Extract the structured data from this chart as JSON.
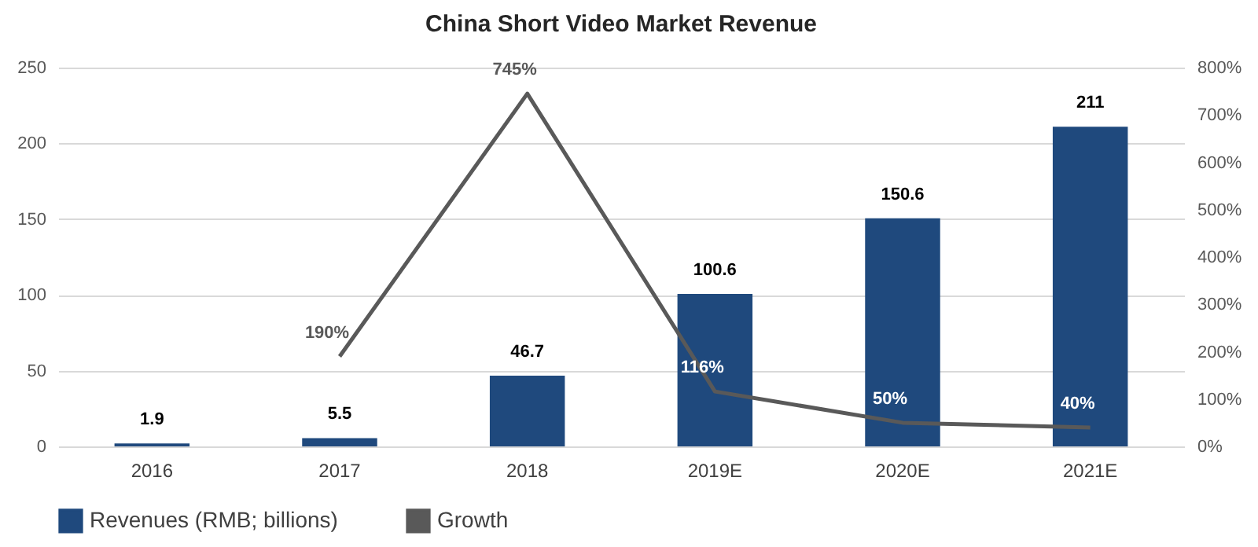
{
  "chart_data": {
    "type": "bar",
    "title": "China Short Video Market Revenue",
    "categories": [
      "2016",
      "2017",
      "2018",
      "2019E",
      "2020E",
      "2021E"
    ],
    "series": [
      {
        "name": "Revenues (RMB; billions)",
        "color": "#1f497d",
        "values": [
          1.9,
          5.5,
          46.7,
          100.6,
          150.6,
          211
        ],
        "value_labels": [
          "1.9",
          "5.5",
          "46.7",
          "100.6",
          "150.6",
          "211"
        ]
      },
      {
        "name": "Growth",
        "type": "line",
        "axis": "y2",
        "color": "#595959",
        "values": [
          null,
          190,
          745,
          116,
          50,
          40
        ],
        "value_labels": [
          null,
          "190%",
          "745%",
          "116%",
          "50%",
          "40%"
        ]
      }
    ],
    "ylim": [
      0,
      250
    ],
    "yticks": [
      0,
      50,
      100,
      150,
      200,
      250
    ],
    "y2lim": [
      0,
      800
    ],
    "y2ticks": [
      {
        "value": 0,
        "label": "0%"
      },
      {
        "value": 100,
        "label": "100%"
      },
      {
        "value": 200,
        "label": "200%"
      },
      {
        "value": 300,
        "label": "300%"
      },
      {
        "value": 400,
        "label": "400%"
      },
      {
        "value": 500,
        "label": "500%"
      },
      {
        "value": 600,
        "label": "600%"
      },
      {
        "value": 700,
        "label": "700%"
      },
      {
        "value": 800,
        "label": "800%"
      }
    ],
    "grid": "y",
    "legend": "bottom",
    "marker": "none",
    "line_style": "solid"
  }
}
